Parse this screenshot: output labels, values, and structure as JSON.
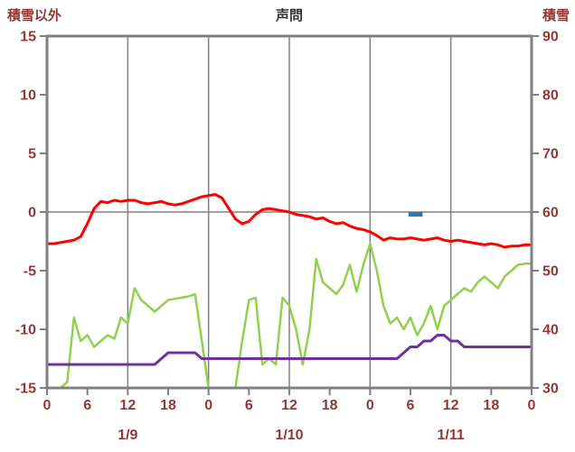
{
  "header": {
    "left_axis_label": "積雪以外",
    "title": "声問",
    "right_axis_label": "積雪"
  },
  "chart_data": {
    "type": "line",
    "title": "声問",
    "x_axis": {
      "unit": "hour",
      "range": [
        0,
        72
      ],
      "tick_interval": 6,
      "tick_labels": [
        "0",
        "6",
        "12",
        "18",
        "0",
        "6",
        "12",
        "18",
        "0",
        "6",
        "12",
        "18",
        "0"
      ],
      "date_labels": [
        {
          "label": "1/9",
          "x": 12
        },
        {
          "label": "1/10",
          "x": 36
        },
        {
          "label": "1/11",
          "x": 60
        }
      ]
    },
    "left_axis": {
      "label": "積雪以外",
      "min": -15,
      "max": 15,
      "tick_values": [
        15,
        10,
        5,
        0,
        -5,
        -10,
        -15
      ]
    },
    "right_axis": {
      "label": "積雪",
      "min": 30,
      "max": 90,
      "tick_values": [
        90,
        80,
        70,
        60,
        50,
        40,
        30
      ]
    },
    "grid": {
      "vertical_x": [
        12,
        24,
        36,
        48,
        60
      ],
      "horizontal_left_values": [
        0
      ]
    },
    "series": [
      {
        "name": "green-line",
        "axis": "left",
        "color": "#92d050",
        "width": 2.5,
        "values": [
          -15,
          -15,
          -15,
          -14.5,
          -9,
          -11,
          -10.5,
          -11.5,
          -11,
          -10.5,
          -10.8,
          -9,
          -9.5,
          -6.5,
          -7.5,
          -8,
          -8.5,
          -8,
          -7.5,
          -7.4,
          -7.3,
          -7.2,
          -7,
          -11,
          -15,
          -15,
          -15,
          -15,
          -15,
          -11,
          -7.5,
          -7.3,
          -13,
          -12.5,
          -13,
          -7.3,
          -8,
          -10,
          -13,
          -10,
          -4,
          -6,
          -6.5,
          -7,
          -6.2,
          -4.5,
          -6.8,
          -4.5,
          -2.7,
          -5,
          -8,
          -9.5,
          -9,
          -10,
          -9,
          -10.5,
          -9.5,
          -8,
          -10,
          -8,
          -7.5,
          -7,
          -6.5,
          -6.8,
          -6,
          -5.5,
          -6,
          -6.5,
          -5.5,
          -5,
          -4.5,
          -4.4,
          -4.4
        ]
      },
      {
        "name": "purple-line",
        "axis": "right",
        "color": "#7030a0",
        "width": 3,
        "values": [
          34,
          34,
          34,
          34,
          34,
          34,
          34,
          34,
          34,
          34,
          34,
          34,
          34,
          34,
          34,
          34,
          34,
          35,
          36,
          36,
          36,
          36,
          36,
          35,
          35,
          35,
          35,
          35,
          35,
          35,
          35,
          35,
          35,
          35,
          35,
          35,
          35,
          35,
          35,
          35,
          35,
          35,
          35,
          35,
          35,
          35,
          35,
          35,
          35,
          35,
          35,
          35,
          35,
          36,
          37,
          37,
          38,
          38,
          39,
          39,
          38,
          38,
          37,
          37,
          37,
          37,
          37,
          37,
          37,
          37,
          37,
          37,
          37
        ]
      },
      {
        "name": "red-line",
        "axis": "left",
        "color": "#ff0000",
        "width": 3,
        "values": [
          -2.7,
          -2.7,
          -2.6,
          -2.5,
          -2.4,
          -2.1,
          -1.0,
          0.3,
          0.9,
          0.8,
          1.0,
          0.9,
          1.0,
          1.0,
          0.8,
          0.7,
          0.8,
          0.9,
          0.7,
          0.6,
          0.7,
          0.9,
          1.1,
          1.3,
          1.4,
          1.5,
          1.2,
          0.3,
          -0.6,
          -1.0,
          -0.8,
          -0.2,
          0.2,
          0.3,
          0.2,
          0.1,
          0.0,
          -0.2,
          -0.3,
          -0.4,
          -0.6,
          -0.5,
          -0.8,
          -1.0,
          -0.9,
          -1.2,
          -1.4,
          -1.5,
          -1.7,
          -2.0,
          -2.4,
          -2.2,
          -2.3,
          -2.3,
          -2.2,
          -2.3,
          -2.4,
          -2.3,
          -2.2,
          -2.4,
          -2.5,
          -2.4,
          -2.5,
          -2.6,
          -2.7,
          -2.8,
          -2.7,
          -2.8,
          -3.0,
          -2.9,
          -2.9,
          -2.8,
          -2.8
        ]
      }
    ],
    "marker": {
      "name": "blue-dash-marker",
      "axis": "left",
      "color": "#2e75b6",
      "x_start": 53.7,
      "x_end": 55.8,
      "value": -0.2,
      "width": 5
    }
  },
  "colors": {
    "grid": "#808080",
    "tick_text": "#953735",
    "title_text": "#333333",
    "background": "#ffffff"
  }
}
